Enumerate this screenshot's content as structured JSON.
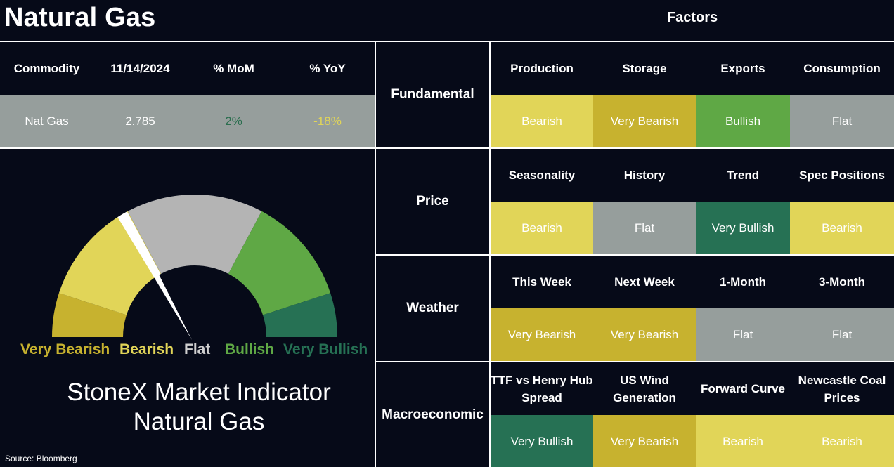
{
  "title": "Natural Gas",
  "factors_title": "Factors",
  "colors": {
    "very_bearish": "#c7b22f",
    "bearish": "#e1d558",
    "flat": "#969e9c",
    "bullish": "#5fa845",
    "very_bullish": "#267154",
    "background": "#060a18",
    "gauge_flat": "#b4b4b4"
  },
  "commodity_table": {
    "headers": [
      "Commodity",
      "11/14/2024",
      "% MoM",
      "% YoY"
    ],
    "row": [
      "Nat Gas",
      "2.785",
      "2%",
      "-18%"
    ],
    "mom_color": "#2a6e4e",
    "yoy_color": "#e1d558"
  },
  "gauge": {
    "labels": [
      "Very Bearish",
      "Bearish",
      "Flat",
      "Bullish",
      "Very Bullish"
    ],
    "label_colors": [
      "#c7b22f",
      "#e1d558",
      "#cfcfcf",
      "#5fa845",
      "#267154"
    ],
    "needle_level": "Bearish"
  },
  "indicator_title_line1": "StoneX Market Indicator",
  "indicator_title_line2": "Natural Gas",
  "source": "Source: Bloomberg",
  "categories": [
    {
      "name": "Fundamental",
      "factors": [
        {
          "label": "Production",
          "value": "Bearish"
        },
        {
          "label": "Storage",
          "value": "Very Bearish"
        },
        {
          "label": "Exports",
          "value": "Bullish"
        },
        {
          "label": "Consumption",
          "value": "Flat"
        }
      ]
    },
    {
      "name": "Price",
      "factors": [
        {
          "label": "Seasonality",
          "value": "Bearish"
        },
        {
          "label": "History",
          "value": "Flat"
        },
        {
          "label": "Trend",
          "value": "Very Bullish"
        },
        {
          "label": "Spec Positions",
          "value": "Bearish"
        }
      ]
    },
    {
      "name": "Weather",
      "factors": [
        {
          "label": "This Week",
          "value": "Very Bearish"
        },
        {
          "label": "Next Week",
          "value": "Very Bearish"
        },
        {
          "label": "1-Month",
          "value": "Flat"
        },
        {
          "label": "3-Month",
          "value": "Flat"
        }
      ]
    },
    {
      "name": "Macroeconomic",
      "factors": [
        {
          "label": "TTF vs Henry Hub Spread",
          "value": "Very Bullish"
        },
        {
          "label": "US Wind Generation",
          "value": "Very Bearish"
        },
        {
          "label": "Forward Curve",
          "value": "Bearish"
        },
        {
          "label": "Newcastle Coal Prices",
          "value": "Bearish"
        }
      ]
    }
  ]
}
